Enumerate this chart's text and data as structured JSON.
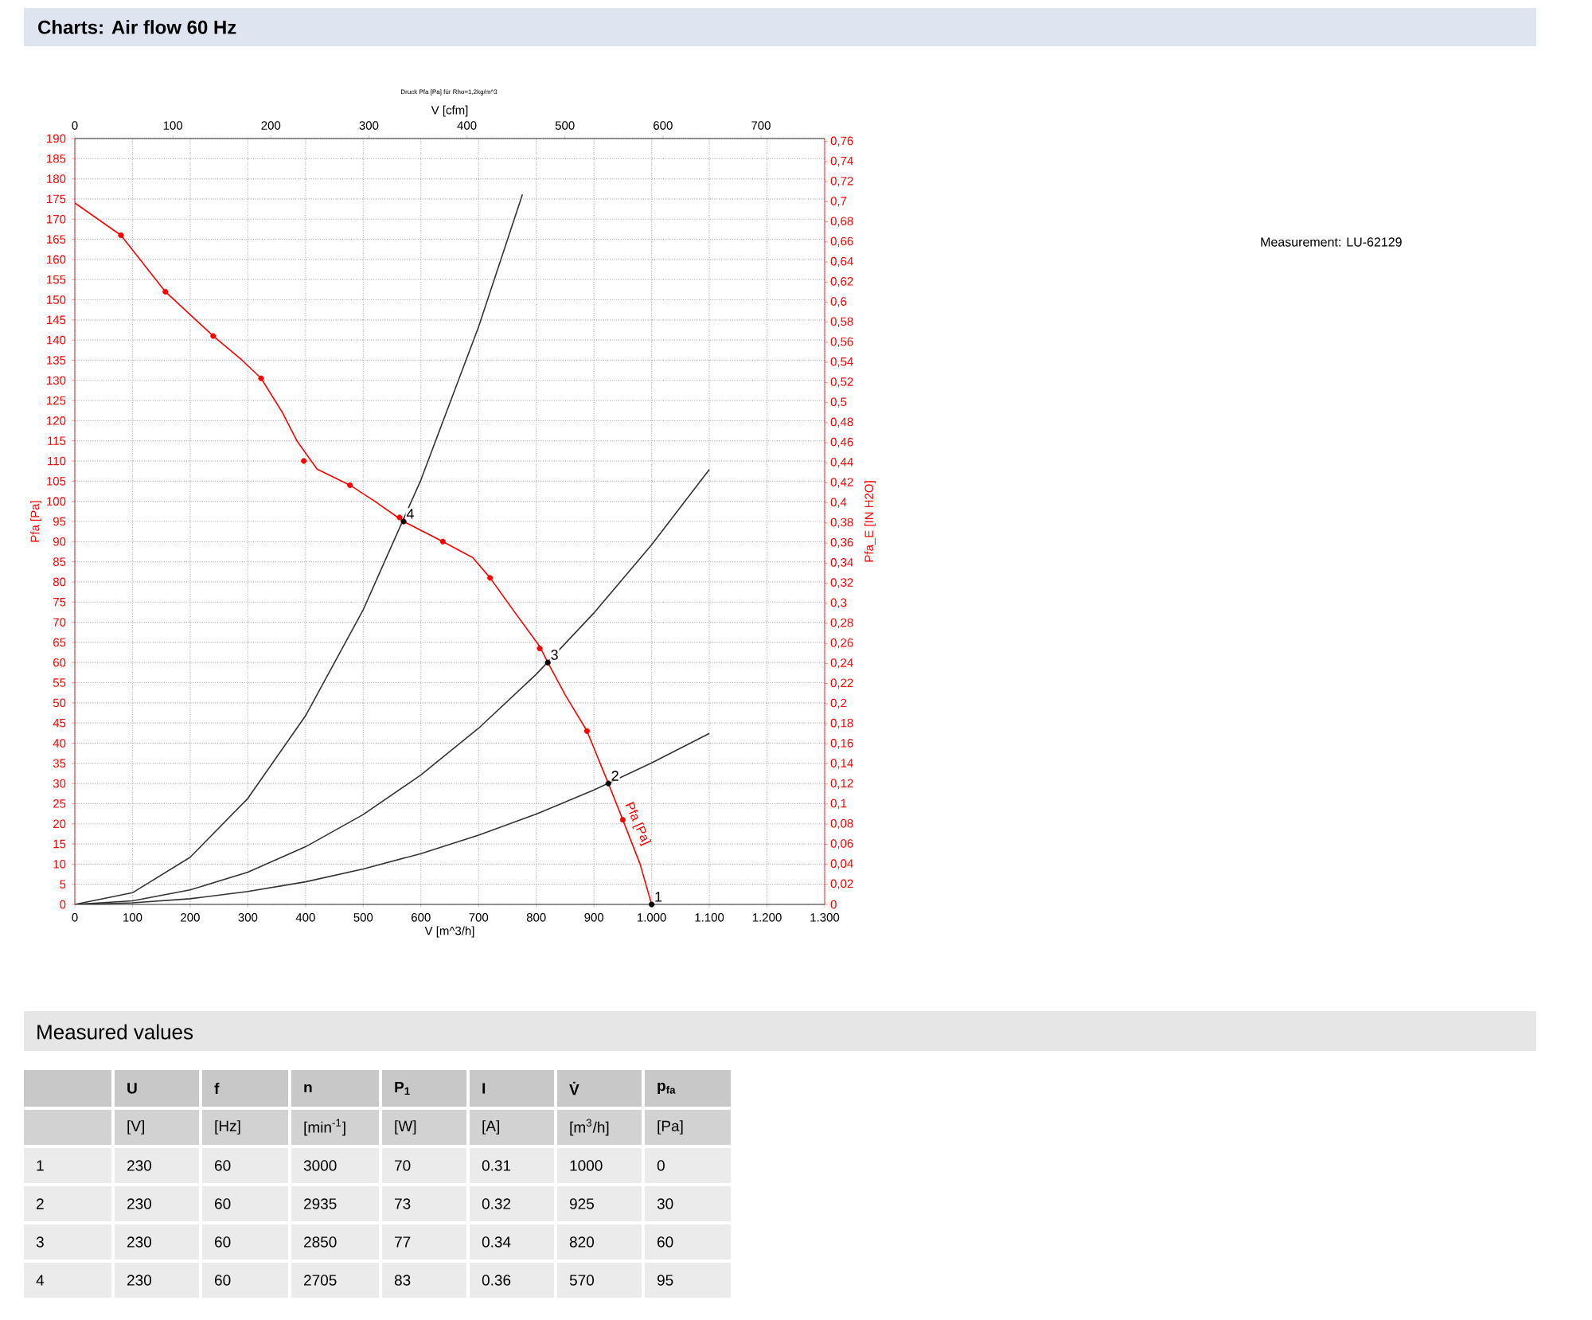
{
  "chart_data": {
    "type": "line",
    "title": "Charts: Air flow 60 Hz",
    "subtitle": "Druck Pfa [Pa] für Rho=1,2kg/m^3",
    "xlabel": "V [m^3/h]",
    "x2label": "V [cfm]",
    "ylabel": "Pfa [Pa]",
    "y2label": "Pfa_E [IN H2O]",
    "xlim": [
      0,
      1300
    ],
    "x2lim": [
      0,
      765
    ],
    "ylim": [
      0,
      190
    ],
    "y2lim": [
      0,
      0.763
    ],
    "xticks": [
      0,
      100,
      200,
      300,
      400,
      500,
      600,
      700,
      800,
      900,
      {
        "value": 1000,
        "label": "1.000"
      },
      {
        "value": 1100,
        "label": "1.100"
      },
      {
        "value": 1200,
        "label": "1.200"
      },
      {
        "value": 1300,
        "label": "1.300"
      }
    ],
    "x2ticks": [
      0,
      100,
      200,
      300,
      400,
      500,
      600,
      700
    ],
    "yticks": [
      0,
      5,
      10,
      15,
      20,
      25,
      30,
      35,
      40,
      45,
      50,
      55,
      60,
      65,
      70,
      75,
      80,
      85,
      90,
      95,
      100,
      105,
      110,
      115,
      120,
      125,
      130,
      135,
      140,
      145,
      150,
      155,
      160,
      165,
      170,
      175,
      180,
      185,
      190
    ],
    "y2ticks": [
      0,
      {
        "value": 0.02,
        "label": "0,02"
      },
      {
        "value": 0.04,
        "label": "0,04"
      },
      {
        "value": 0.06,
        "label": "0,06"
      },
      {
        "value": 0.08,
        "label": "0,08"
      },
      {
        "value": 0.1,
        "label": "0,1"
      },
      {
        "value": 0.12,
        "label": "0,12"
      },
      {
        "value": 0.14,
        "label": "0,14"
      },
      {
        "value": 0.16,
        "label": "0,16"
      },
      {
        "value": 0.18,
        "label": "0,18"
      },
      {
        "value": 0.2,
        "label": "0,2"
      },
      {
        "value": 0.22,
        "label": "0,22"
      },
      {
        "value": 0.24,
        "label": "0,24"
      },
      {
        "value": 0.26,
        "label": "0,26"
      },
      {
        "value": 0.28,
        "label": "0,28"
      },
      {
        "value": 0.3,
        "label": "0,3"
      },
      {
        "value": 0.32,
        "label": "0,32"
      },
      {
        "value": 0.34,
        "label": "0,34"
      },
      {
        "value": 0.36,
        "label": "0,36"
      },
      {
        "value": 0.38,
        "label": "0,38"
      },
      {
        "value": 0.4,
        "label": "0,4"
      },
      {
        "value": 0.42,
        "label": "0,42"
      },
      {
        "value": 0.44,
        "label": "0,44"
      },
      {
        "value": 0.46,
        "label": "0,46"
      },
      {
        "value": 0.48,
        "label": "0,48"
      },
      {
        "value": 0.5,
        "label": "0,5"
      },
      {
        "value": 0.52,
        "label": "0,52"
      },
      {
        "value": 0.54,
        "label": "0,54"
      },
      {
        "value": 0.56,
        "label": "0,56"
      },
      {
        "value": 0.58,
        "label": "0,58"
      },
      {
        "value": 0.6,
        "label": "0,6"
      },
      {
        "value": 0.62,
        "label": "0,62"
      },
      {
        "value": 0.64,
        "label": "0,64"
      },
      {
        "value": 0.66,
        "label": "0,66"
      },
      {
        "value": 0.68,
        "label": "0,68"
      },
      {
        "value": 0.7,
        "label": "0,7"
      },
      {
        "value": 0.72,
        "label": "0,72"
      },
      {
        "value": 0.74,
        "label": "0,74"
      },
      {
        "value": 0.76,
        "label": "0,76"
      }
    ],
    "grid": true,
    "series": [
      {
        "name": "Pfa [Pa]",
        "color": "#ff0000",
        "marker": "none",
        "x": [
          0,
          80,
          157,
          240,
          290,
          323,
          360,
          385,
          420,
          477,
          520,
          570,
          638,
          690,
          720,
          760,
          806,
          820,
          850,
          888,
          925,
          950,
          980,
          1000
        ],
        "values": [
          174,
          166,
          152,
          141,
          135,
          130.5,
          122,
          115,
          108,
          104,
          100,
          95,
          90,
          86,
          81,
          73,
          64,
          60,
          52,
          43,
          30,
          21,
          10,
          0
        ]
      },
      {
        "type": "scatter",
        "color": "#ff0000",
        "marker": "circle",
        "x": [
          80,
          157,
          240,
          323,
          397,
          477,
          563,
          638,
          720,
          806,
          888,
          950
        ],
        "values": [
          166,
          152,
          141,
          130.5,
          110,
          104,
          96,
          90,
          81,
          63.5,
          43,
          21
        ]
      },
      {
        "color": "#333333",
        "marker": "none",
        "x": [
          0,
          100,
          200,
          300,
          400,
          500,
          600,
          700,
          776
        ],
        "values": [
          0,
          2.9,
          11.7,
          26.3,
          46.8,
          73.1,
          105.3,
          143.3,
          176.1
        ]
      },
      {
        "color": "#333333",
        "marker": "none",
        "x": [
          0,
          100,
          200,
          300,
          400,
          500,
          600,
          700,
          800,
          900,
          1000,
          1100
        ],
        "values": [
          0,
          0.9,
          3.6,
          8.0,
          14.3,
          22.3,
          32.1,
          43.7,
          57.1,
          72.3,
          89.2,
          107.9
        ]
      },
      {
        "color": "#333333",
        "marker": "none",
        "x": [
          0,
          100,
          200,
          300,
          400,
          500,
          600,
          700,
          800,
          900,
          1000,
          1100
        ],
        "values": [
          0,
          0.4,
          1.4,
          3.2,
          5.6,
          8.8,
          12.6,
          17.2,
          22.4,
          28.4,
          35.1,
          42.4
        ]
      },
      {
        "type": "scatter",
        "color": "#000000",
        "marker": "circle",
        "x": [
          1000,
          925,
          820,
          570
        ],
        "values": [
          0,
          30,
          60,
          95
        ]
      }
    ],
    "annotations": [
      "Measurement: LU-62129",
      "Measured values",
      "U",
      "f",
      "n",
      "P$_{1}$",
      "I",
      "V̇",
      "p$_{fa}$",
      "[V]",
      "[Hz]",
      "[min$^{-1}$]",
      "[W]",
      "[A]",
      "[m$^{3}$/h]",
      "[Pa]",
      "1",
      "230",
      "60",
      "3000",
      "70",
      "0.31",
      "1000",
      "0",
      "2",
      "230",
      "60",
      "2935",
      "73",
      "0.32",
      "925",
      "30",
      "3",
      "230",
      "60",
      "2850",
      "77",
      "0.34",
      "820",
      "60",
      "4",
      "230",
      "60",
      "2705",
      "83",
      "0.36",
      "570",
      "95",
      {
        "text": "1",
        "x": 1000,
        "y": 0
      },
      {
        "text": "2",
        "x": 925,
        "y": 30
      },
      {
        "text": "3",
        "x": 820,
        "y": 60
      },
      {
        "text": "4",
        "x": 570,
        "y": 95
      }
    ]
  }
}
